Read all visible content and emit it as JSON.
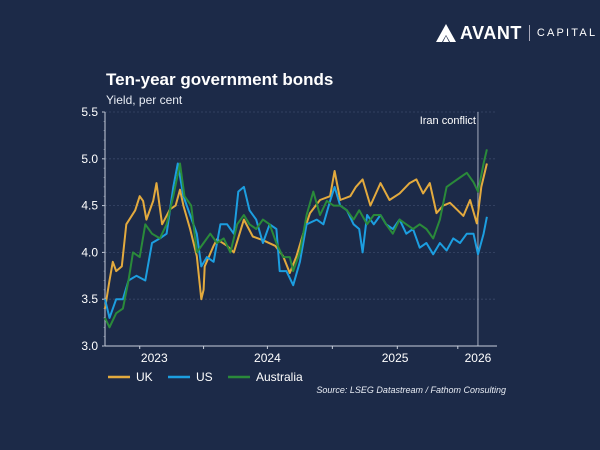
{
  "brand": {
    "name": "AVANT",
    "sub": "CAPITAL"
  },
  "colors": {
    "background": "#1c2a48",
    "uk": "#e3aa3e",
    "us": "#1c9ee0",
    "australia": "#2a8a3a"
  },
  "chart_data": {
    "type": "line",
    "title": "Ten-year government bonds",
    "ylabel": "Yield, per cent",
    "xlabel": "",
    "ylim": [
      3.0,
      5.5
    ],
    "xlim": [
      2022.75,
      2026.25
    ],
    "yticks": [
      "3.0",
      "3.5",
      "4.0",
      "4.5",
      "5.0",
      "5.5"
    ],
    "ytick_values": [
      3.0,
      3.5,
      4.0,
      4.5,
      5.0,
      5.5
    ],
    "xtick_labels": [
      {
        "label": "2023",
        "x": 2023.19
      },
      {
        "label": "2024",
        "x": 2024.2
      },
      {
        "label": "2025",
        "x": 2025.34
      },
      {
        "label": "2026",
        "x": 2026.08
      }
    ],
    "xtick_marks": [
      2023.06,
      2023.63,
      2024.2,
      2024.78,
      2025.36,
      2025.9
    ],
    "grid": true,
    "annotation": {
      "label": "Iran conflict",
      "x": 2026.08
    },
    "legend": {
      "placement": "bottom-left"
    },
    "source": "Source: LSEG Datastream / Fathom Consulting",
    "series": [
      {
        "name": "UK",
        "color": "#e3aa3e",
        "points": [
          [
            2022.75,
            3.4
          ],
          [
            2022.79,
            3.7
          ],
          [
            2022.82,
            3.9
          ],
          [
            2022.85,
            3.8
          ],
          [
            2022.9,
            3.85
          ],
          [
            2022.94,
            4.3
          ],
          [
            2023.02,
            4.45
          ],
          [
            2023.06,
            4.6
          ],
          [
            2023.09,
            4.55
          ],
          [
            2023.12,
            4.35
          ],
          [
            2023.18,
            4.55
          ],
          [
            2023.21,
            4.74
          ],
          [
            2023.26,
            4.3
          ],
          [
            2023.33,
            4.46
          ],
          [
            2023.38,
            4.5
          ],
          [
            2023.42,
            4.67
          ],
          [
            2023.45,
            4.5
          ],
          [
            2023.51,
            4.25
          ],
          [
            2023.57,
            3.96
          ],
          [
            2023.61,
            3.5
          ],
          [
            2023.63,
            3.6
          ],
          [
            2023.64,
            3.85
          ],
          [
            2023.72,
            4.07
          ],
          [
            2023.75,
            4.14
          ],
          [
            2023.84,
            4.07
          ],
          [
            2023.9,
            4.0
          ],
          [
            2023.99,
            4.35
          ],
          [
            2024.07,
            4.17
          ],
          [
            2024.16,
            4.13
          ],
          [
            2024.27,
            4.07
          ],
          [
            2024.34,
            3.96
          ],
          [
            2024.4,
            3.78
          ],
          [
            2024.46,
            3.96
          ],
          [
            2024.52,
            4.2
          ],
          [
            2024.58,
            4.42
          ],
          [
            2024.67,
            4.56
          ],
          [
            2024.76,
            4.6
          ],
          [
            2024.8,
            4.87
          ],
          [
            2024.85,
            4.56
          ],
          [
            2024.94,
            4.6
          ],
          [
            2024.99,
            4.7
          ],
          [
            2025.05,
            4.78
          ],
          [
            2025.12,
            4.5
          ],
          [
            2025.21,
            4.74
          ],
          [
            2025.29,
            4.56
          ],
          [
            2025.38,
            4.63
          ],
          [
            2025.47,
            4.74
          ],
          [
            2025.53,
            4.78
          ],
          [
            2025.59,
            4.63
          ],
          [
            2025.65,
            4.74
          ],
          [
            2025.71,
            4.42
          ],
          [
            2025.77,
            4.5
          ],
          [
            2025.83,
            4.53
          ],
          [
            2025.89,
            4.46
          ],
          [
            2025.95,
            4.39
          ],
          [
            2026.01,
            4.56
          ],
          [
            2026.07,
            4.31
          ],
          [
            2026.11,
            4.7
          ],
          [
            2026.16,
            4.95
          ]
        ]
      },
      {
        "name": "US",
        "color": "#1c9ee0",
        "points": [
          [
            2022.75,
            3.5
          ],
          [
            2022.79,
            3.3
          ],
          [
            2022.85,
            3.5
          ],
          [
            2022.91,
            3.5
          ],
          [
            2022.96,
            3.7
          ],
          [
            2023.03,
            3.75
          ],
          [
            2023.11,
            3.7
          ],
          [
            2023.17,
            4.1
          ],
          [
            2023.24,
            4.15
          ],
          [
            2023.3,
            4.2
          ],
          [
            2023.36,
            4.7
          ],
          [
            2023.4,
            4.95
          ],
          [
            2023.45,
            4.6
          ],
          [
            2023.51,
            4.4
          ],
          [
            2023.57,
            4.2
          ],
          [
            2023.61,
            3.85
          ],
          [
            2023.66,
            3.95
          ],
          [
            2023.72,
            3.9
          ],
          [
            2023.78,
            4.3
          ],
          [
            2023.84,
            4.3
          ],
          [
            2023.9,
            4.2
          ],
          [
            2023.94,
            4.65
          ],
          [
            2023.99,
            4.7
          ],
          [
            2024.04,
            4.45
          ],
          [
            2024.1,
            4.35
          ],
          [
            2024.16,
            4.1
          ],
          [
            2024.22,
            4.3
          ],
          [
            2024.28,
            4.25
          ],
          [
            2024.31,
            3.8
          ],
          [
            2024.37,
            3.8
          ],
          [
            2024.43,
            3.65
          ],
          [
            2024.49,
            3.9
          ],
          [
            2024.55,
            4.3
          ],
          [
            2024.64,
            4.35
          ],
          [
            2024.7,
            4.3
          ],
          [
            2024.76,
            4.55
          ],
          [
            2024.8,
            4.7
          ],
          [
            2024.85,
            4.5
          ],
          [
            2024.91,
            4.45
          ],
          [
            2024.97,
            4.3
          ],
          [
            2025.02,
            4.25
          ],
          [
            2025.05,
            4.0
          ],
          [
            2025.09,
            4.4
          ],
          [
            2025.15,
            4.3
          ],
          [
            2025.21,
            4.4
          ],
          [
            2025.26,
            4.3
          ],
          [
            2025.32,
            4.25
          ],
          [
            2025.38,
            4.35
          ],
          [
            2025.44,
            4.2
          ],
          [
            2025.5,
            4.25
          ],
          [
            2025.56,
            4.05
          ],
          [
            2025.62,
            4.1
          ],
          [
            2025.68,
            3.98
          ],
          [
            2025.74,
            4.1
          ],
          [
            2025.8,
            4.02
          ],
          [
            2025.86,
            4.15
          ],
          [
            2025.92,
            4.1
          ],
          [
            2025.98,
            4.2
          ],
          [
            2026.04,
            4.2
          ],
          [
            2026.08,
            3.98
          ],
          [
            2026.13,
            4.2
          ],
          [
            2026.16,
            4.38
          ]
        ]
      },
      {
        "name": "Australia",
        "color": "#2a8a3a",
        "points": [
          [
            2022.75,
            3.3
          ],
          [
            2022.79,
            3.2
          ],
          [
            2022.85,
            3.35
          ],
          [
            2022.91,
            3.4
          ],
          [
            2022.96,
            3.7
          ],
          [
            2023.0,
            4.0
          ],
          [
            2023.06,
            3.95
          ],
          [
            2023.11,
            4.3
          ],
          [
            2023.17,
            4.2
          ],
          [
            2023.24,
            4.15
          ],
          [
            2023.3,
            4.3
          ],
          [
            2023.36,
            4.6
          ],
          [
            2023.42,
            4.95
          ],
          [
            2023.46,
            4.6
          ],
          [
            2023.52,
            4.5
          ],
          [
            2023.57,
            4.0
          ],
          [
            2023.63,
            4.1
          ],
          [
            2023.69,
            4.2
          ],
          [
            2023.75,
            4.1
          ],
          [
            2023.81,
            4.15
          ],
          [
            2023.87,
            4.0
          ],
          [
            2023.93,
            4.3
          ],
          [
            2023.99,
            4.4
          ],
          [
            2024.04,
            4.3
          ],
          [
            2024.1,
            4.25
          ],
          [
            2024.16,
            4.35
          ],
          [
            2024.22,
            4.3
          ],
          [
            2024.28,
            4.1
          ],
          [
            2024.34,
            3.95
          ],
          [
            2024.4,
            3.95
          ],
          [
            2024.43,
            3.8
          ],
          [
            2024.49,
            4.0
          ],
          [
            2024.55,
            4.4
          ],
          [
            2024.61,
            4.65
          ],
          [
            2024.67,
            4.4
          ],
          [
            2024.73,
            4.55
          ],
          [
            2024.79,
            4.5
          ],
          [
            2024.85,
            4.5
          ],
          [
            2024.91,
            4.45
          ],
          [
            2024.97,
            4.35
          ],
          [
            2025.02,
            4.45
          ],
          [
            2025.09,
            4.3
          ],
          [
            2025.15,
            4.4
          ],
          [
            2025.21,
            4.4
          ],
          [
            2025.26,
            4.3
          ],
          [
            2025.32,
            4.2
          ],
          [
            2025.38,
            4.35
          ],
          [
            2025.44,
            4.3
          ],
          [
            2025.5,
            4.25
          ],
          [
            2025.56,
            4.3
          ],
          [
            2025.62,
            4.25
          ],
          [
            2025.68,
            4.15
          ],
          [
            2025.74,
            4.35
          ],
          [
            2025.8,
            4.7
          ],
          [
            2025.86,
            4.75
          ],
          [
            2025.92,
            4.8
          ],
          [
            2025.98,
            4.85
          ],
          [
            2026.04,
            4.75
          ],
          [
            2026.08,
            4.65
          ],
          [
            2026.13,
            4.95
          ],
          [
            2026.16,
            5.1
          ]
        ]
      }
    ]
  }
}
